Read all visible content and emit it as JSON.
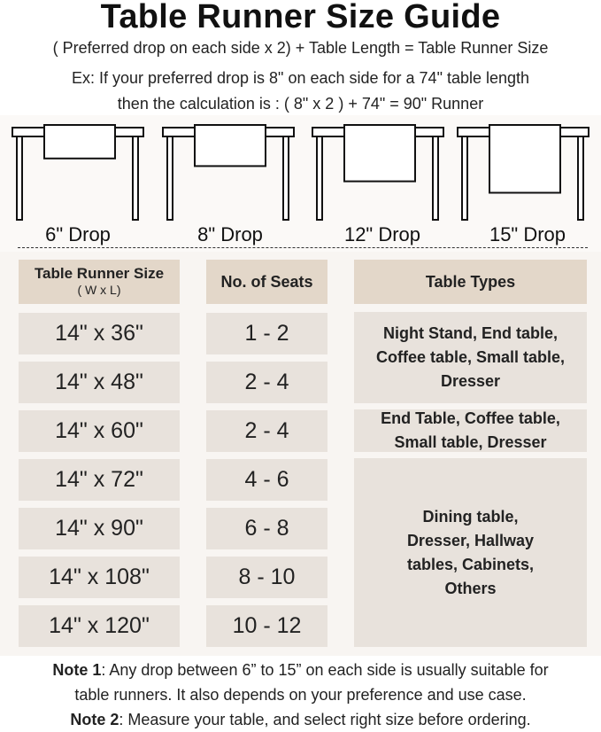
{
  "title": "Table Runner Size Guide",
  "formula": "( Preferred drop on each side x 2) + Table Length = Table Runner Size",
  "example_line1": "Ex: If your preferred drop is 8\" on each side for a 74\" table length",
  "example_line2": "then the calculation is : ( 8\" x 2 ) + 74\" = 90\" Runner",
  "drops": [
    {
      "label": "6\" Drop",
      "inches": 6
    },
    {
      "label": "8\" Drop",
      "inches": 8
    },
    {
      "label": "12\" Drop",
      "inches": 12
    },
    {
      "label": "15\" Drop",
      "inches": 15
    }
  ],
  "headers": {
    "size": "Table Runner Size",
    "size_sub": "( W x L)",
    "seats": "No. of Seats",
    "types": "Table Types"
  },
  "rows": [
    {
      "size": "14\" x 36\"",
      "seats": "1 - 2"
    },
    {
      "size": "14\" x 48\"",
      "seats": "2 - 4"
    },
    {
      "size": "14\" x 60\"",
      "seats": "2 - 4"
    },
    {
      "size": "14\" x 72\"",
      "seats": "4 - 6"
    },
    {
      "size": "14\" x 90\"",
      "seats": "6 - 8"
    },
    {
      "size": "14\" x 108\"",
      "seats": "8 - 10"
    },
    {
      "size": "14\" x 120\"",
      "seats": "10 - 12"
    }
  ],
  "table_types": [
    "Night Stand, End table, Coffee table, Small table, Dresser",
    "End Table, Coffee table, Small table, Dresser",
    "Dining table, Dresser, Hallway tables, Cabinets, Others"
  ],
  "notes": {
    "note1_label": "Note 1",
    "note1_text": ": Any drop between 6” to 15” on each side is usually suitable for",
    "note1_text2": "table runners. It also depends on your preference and use case.",
    "note2_label": "Note 2",
    "note2_text": ": Measure your table, and select right size before ordering."
  },
  "colors": {
    "header_cell": "#e3d7c9",
    "data_cell": "#e8e2dc",
    "background": "#f8f5f2"
  }
}
